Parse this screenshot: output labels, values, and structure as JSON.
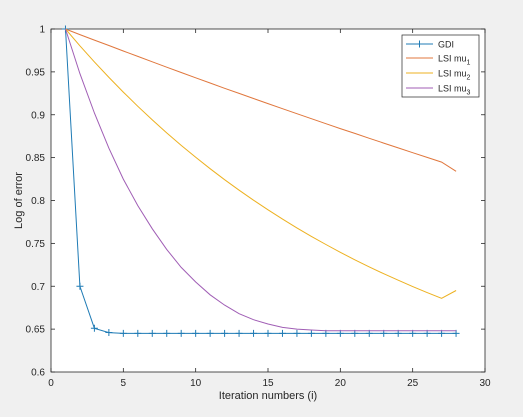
{
  "chart_data": {
    "type": "line",
    "title": "",
    "xlabel": "Iteration numbers (i)",
    "ylabel": "Log of error",
    "xlim": [
      0,
      30
    ],
    "ylim": [
      0.6,
      1.0
    ],
    "xticks": [
      0,
      5,
      10,
      15,
      20,
      25,
      30
    ],
    "yticks": [
      0.6,
      0.65,
      0.7,
      0.75,
      0.8,
      0.85,
      0.9,
      0.95,
      1.0
    ],
    "xtick_labels": [
      "0",
      "5",
      "10",
      "15",
      "20",
      "25",
      "30"
    ],
    "ytick_labels": [
      "0.6",
      "0.65",
      "0.7",
      "0.75",
      "0.8",
      "0.85",
      "0.9",
      "0.95",
      "1"
    ],
    "grid": false,
    "legend_position": "top-right",
    "x": [
      1,
      2,
      3,
      4,
      5,
      6,
      7,
      8,
      9,
      10,
      11,
      12,
      13,
      14,
      15,
      16,
      17,
      18,
      19,
      20,
      21,
      22,
      23,
      24,
      25,
      26,
      27,
      28
    ],
    "series": [
      {
        "name": "GDI",
        "sub": "",
        "color": "#1f7bb5",
        "marker": "plus",
        "values": [
          1.0,
          0.7,
          0.651,
          0.646,
          0.645,
          0.645,
          0.645,
          0.645,
          0.645,
          0.645,
          0.645,
          0.645,
          0.645,
          0.645,
          0.645,
          0.645,
          0.645,
          0.645,
          0.645,
          0.645,
          0.645,
          0.645,
          0.645,
          0.645,
          0.645,
          0.645,
          0.645,
          0.645
        ]
      },
      {
        "name": "LSI mu",
        "sub": "1",
        "color": "#e0773d",
        "marker": "none",
        "values": [
          1.0,
          0.9935,
          0.9871,
          0.9807,
          0.9743,
          0.968,
          0.9617,
          0.9555,
          0.9493,
          0.9431,
          0.937,
          0.9309,
          0.9249,
          0.9189,
          0.913,
          0.9071,
          0.9012,
          0.8954,
          0.8896,
          0.8839,
          0.8782,
          0.8725,
          0.8669,
          0.8613,
          0.8558,
          0.8503,
          0.8448,
          0.834
        ]
      },
      {
        "name": "LSI mu",
        "sub": "2",
        "color": "#edb120",
        "marker": "none",
        "values": [
          1.0,
          0.9804,
          0.9616,
          0.9436,
          0.9264,
          0.9098,
          0.894,
          0.8788,
          0.8643,
          0.8504,
          0.8371,
          0.8243,
          0.812,
          0.8003,
          0.7891,
          0.7783,
          0.768,
          0.7581,
          0.7487,
          0.7396,
          0.7309,
          0.7226,
          0.7146,
          0.707,
          0.6996,
          0.6926,
          0.6859,
          0.695
        ]
      },
      {
        "name": "LSI mu",
        "sub": "3",
        "color": "#a05eb5",
        "marker": "none",
        "values": [
          1.0,
          0.948,
          0.902,
          0.861,
          0.825,
          0.794,
          0.767,
          0.743,
          0.722,
          0.705,
          0.69,
          0.678,
          0.668,
          0.661,
          0.656,
          0.652,
          0.65,
          0.649,
          0.648,
          0.648,
          0.648,
          0.648,
          0.648,
          0.648,
          0.648,
          0.648,
          0.648,
          0.648
        ]
      }
    ]
  }
}
